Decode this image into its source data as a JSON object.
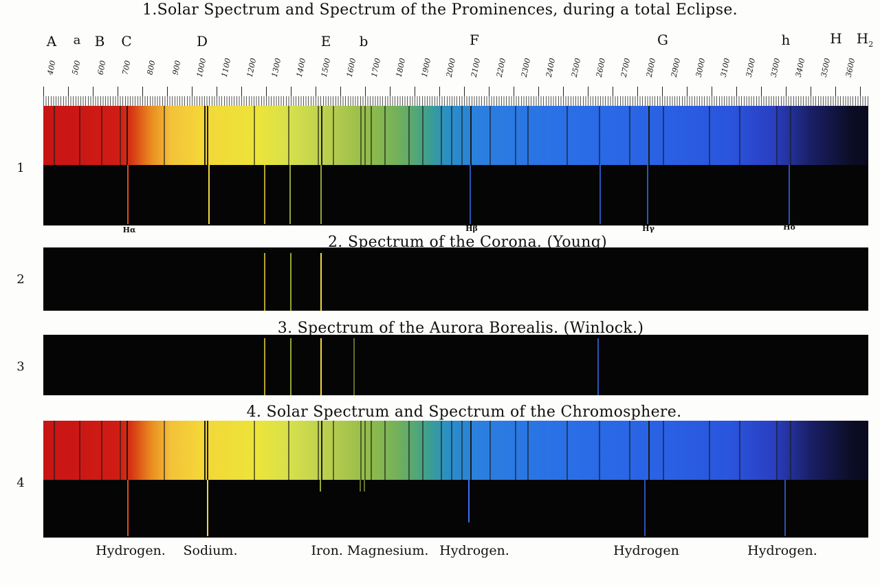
{
  "titles": {
    "t1": "1.Solar Spectrum and Spectrum of the Prominences, during a total Eclipse.",
    "t2": "2. Spectrum of the Corona. (Young)",
    "t3": "3. Spectrum of the Aurora Borealis. (Winlock.)",
    "t4": "4. Solar Spectrum and Spectrum of the Chromosphere."
  },
  "row_numbers": [
    "1",
    "2",
    "3",
    "4"
  ],
  "fraunhofer_letters": [
    "A",
    "a",
    "B",
    "C",
    "D",
    "E",
    "b",
    "F",
    "G",
    "h",
    "H",
    "H"
  ],
  "fraunhofer_h2_subscript": "2",
  "scale_numbers": [
    "400",
    "500",
    "600",
    "700",
    "800",
    "900",
    "1000",
    "1100",
    "1200",
    "1300",
    "1400",
    "1500",
    "1600",
    "1700",
    "1800",
    "1900",
    "2000",
    "2100",
    "2200",
    "2300",
    "2400",
    "2500",
    "2600",
    "2700",
    "2800",
    "2900",
    "3000",
    "3100",
    "3200",
    "3300",
    "3400",
    "3500",
    "3600"
  ],
  "hydrogen_line_labels": [
    "Hα",
    "Hβ",
    "Hγ",
    "Hδ"
  ],
  "bottom_labels": [
    "Hydrogen.",
    "Sodium.",
    "Iron. Magnesium.",
    "Hydrogen.",
    "Hydrogen",
    "Hydrogen."
  ],
  "emission_line_colors": {
    "red": "#e04a1a",
    "yellow": "#f2d83c",
    "green": "#c8d64a",
    "blue": "#3a6ff0"
  }
}
